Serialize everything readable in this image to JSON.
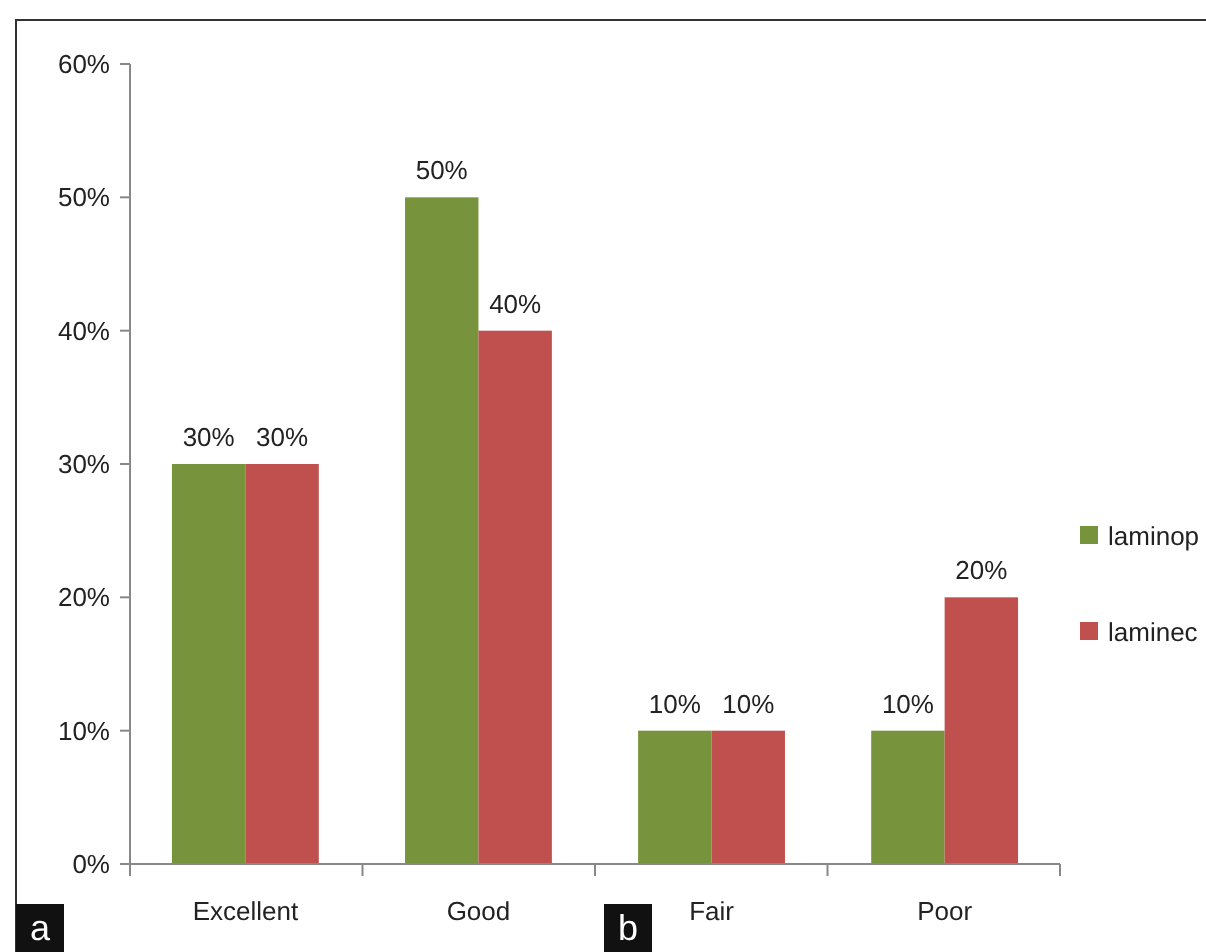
{
  "chart_data": {
    "type": "bar",
    "categories": [
      "Excellent",
      "Good",
      "Fair",
      "Poor"
    ],
    "series": [
      {
        "name": "laminop",
        "color": "#77933c",
        "values": [
          30,
          50,
          10,
          10
        ],
        "value_labels": [
          "30%",
          "50%",
          "10%",
          "10%"
        ]
      },
      {
        "name": "laminec",
        "color": "#c0504d",
        "values": [
          30,
          40,
          10,
          20
        ],
        "value_labels": [
          "30%",
          "40%",
          "10%",
          "20%"
        ]
      }
    ],
    "ylim": [
      0,
      60
    ],
    "yticks": [
      {
        "value": 0,
        "label": "0%"
      },
      {
        "value": 10,
        "label": "10%"
      },
      {
        "value": 20,
        "label": "20%"
      },
      {
        "value": 30,
        "label": "30%"
      },
      {
        "value": 40,
        "label": "40%"
      },
      {
        "value": 50,
        "label": "50%"
      },
      {
        "value": 60,
        "label": "60%"
      }
    ],
    "grid": false,
    "legend": "right",
    "annotations": [
      "a",
      "b"
    ]
  }
}
